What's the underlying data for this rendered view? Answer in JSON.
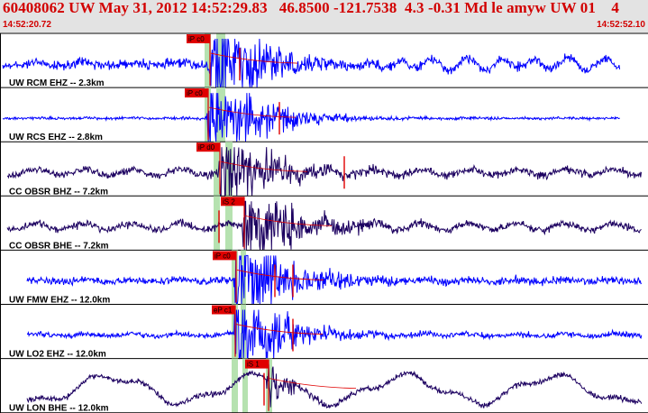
{
  "header": {
    "title": "60408062 UW May 31, 2012 14:52:29.83   46.8500 -121.7538  4.3 -0.31 Md le amyw UW 01    4",
    "time_start": "14:52:20.72",
    "time_end": "14:52:52.10"
  },
  "colors": {
    "header_text": "#d20000",
    "header_bg": "#e3e3e3",
    "trace_blue": "#0000ff",
    "trace_dark": "#1c0060",
    "pick_red": "#e00000",
    "phase_band": "#b6e2b0"
  },
  "panels": [
    {
      "label": "UW RCM EHZ -- 2.3km",
      "pick": "iP c0",
      "color": "blue"
    },
    {
      "label": "UW RCS EHZ -- 2.8km",
      "pick": "iP c0",
      "color": "blue"
    },
    {
      "label": "CC OBSR BHZ -- 7.2km",
      "pick": "iP d0",
      "color": "dark"
    },
    {
      "label": "CC OBSR BHE -- 7.2km",
      "pick": "iS 2",
      "color": "dark"
    },
    {
      "label": "UW FMW EHZ -- 12.0km",
      "pick": "iP c0",
      "color": "blue"
    },
    {
      "label": "UW LO2 EHZ -- 12.0km",
      "pick": "eP c1",
      "color": "blue"
    },
    {
      "label": "UW LON BHE -- 12.0km",
      "pick": "iS 1",
      "color": "dark"
    }
  ]
}
